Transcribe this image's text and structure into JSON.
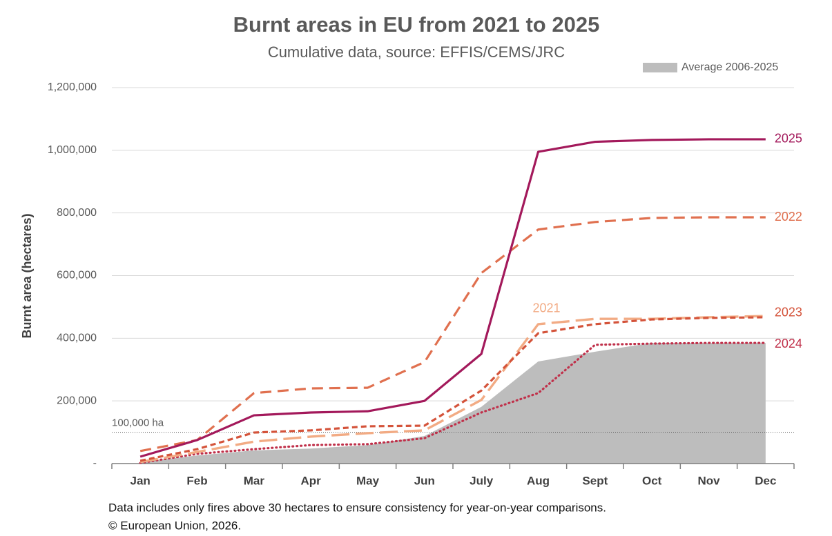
{
  "chart_data": {
    "type": "line",
    "title": "Burnt areas in EU from 2021 to 2025",
    "subtitle": "Cumulative data, source: EFFIS/CEMS/JRC",
    "y_label": "Burnt area (hectares)",
    "categories": [
      "Jan",
      "Feb",
      "Mar",
      "Apr",
      "May",
      "Jun",
      "July",
      "Aug",
      "Sept",
      "Oct",
      "Nov",
      "Dec"
    ],
    "ylim": [
      0,
      1200000
    ],
    "yticks": [
      {
        "value": 0,
        "label": "-"
      },
      {
        "value": 200000,
        "label": "200,000"
      },
      {
        "value": 400000,
        "label": "400,000"
      },
      {
        "value": 600000,
        "label": "600,000"
      },
      {
        "value": 800000,
        "label": "800,000"
      },
      {
        "value": 1000000,
        "label": "1,000,000"
      },
      {
        "value": 1200000,
        "label": "1,200,000"
      }
    ],
    "grid": true,
    "legend": "top-right",
    "reference_line": {
      "value": 100000,
      "label": "100,000 ha"
    },
    "series": [
      {
        "name": "Average 2006-2025",
        "style": "area",
        "color": "#bdbdbd",
        "values": [
          5000,
          26000,
          42000,
          48000,
          59000,
          88000,
          181000,
          326000,
          357000,
          385000,
          385000,
          385000
        ]
      },
      {
        "name": "2024",
        "style": "dotted",
        "color": "#c0304a",
        "values": [
          2000,
          31000,
          46000,
          59000,
          62000,
          81000,
          163000,
          225000,
          379000,
          383000,
          385000,
          385000
        ]
      },
      {
        "name": "2021",
        "style": "long-dash",
        "color": "#f2ab84",
        "values": [
          5000,
          37000,
          70000,
          86000,
          97000,
          106000,
          203000,
          445000,
          462000,
          462000,
          467000,
          471000
        ]
      },
      {
        "name": "2023",
        "style": "short-dash",
        "color": "#d4533a",
        "values": [
          9000,
          46000,
          99000,
          106000,
          119000,
          121000,
          233000,
          416000,
          445000,
          460000,
          465000,
          467000
        ]
      },
      {
        "name": "2022",
        "style": "dash",
        "color": "#e0704f",
        "values": [
          40000,
          75000,
          225000,
          240000,
          242000,
          324000,
          608000,
          747000,
          771000,
          784000,
          786000,
          786000
        ]
      },
      {
        "name": "2025",
        "style": "solid",
        "color": "#a3195b",
        "values": [
          22000,
          75000,
          154000,
          163000,
          167000,
          200000,
          350000,
          995000,
          1027000,
          1033000,
          1035000,
          1035000
        ]
      }
    ],
    "notes": [
      "Data includes only fires above 30 hectares to ensure consistency for year-on-year comparisons.",
      "© European Union, 2026."
    ]
  }
}
